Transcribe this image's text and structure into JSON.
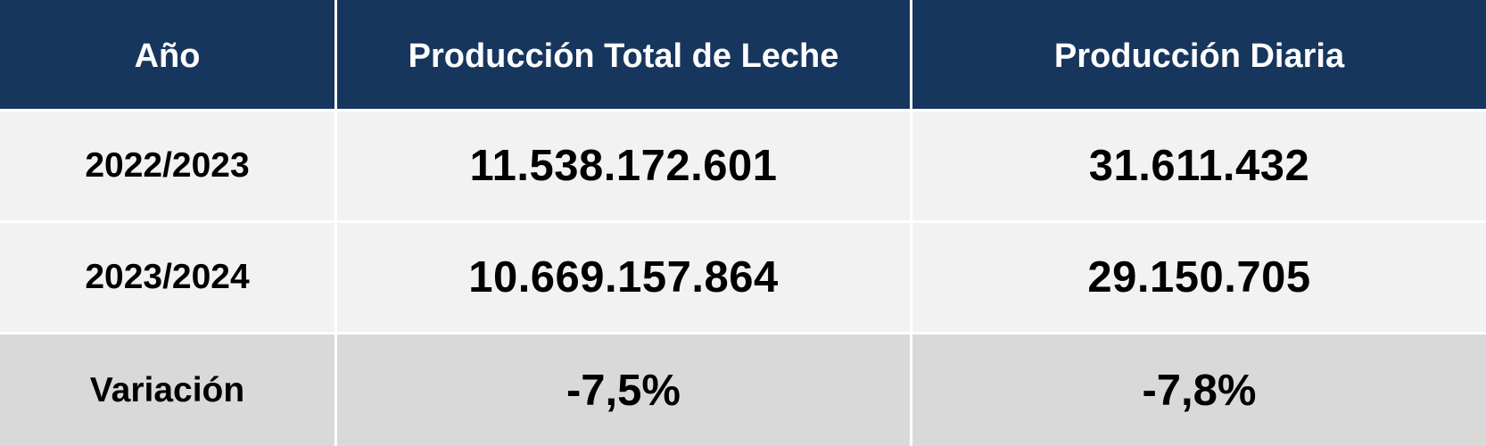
{
  "table": {
    "headers": [
      "Año",
      "Producción Total de Leche",
      "Producción Diaria"
    ],
    "rows": [
      [
        "2022/2023",
        "11.538.172.601",
        "31.611.432"
      ],
      [
        "2023/2024",
        "10.669.157.864",
        "29.150.705"
      ]
    ],
    "footer": [
      "Variación",
      "-7,5%",
      "-7,8%"
    ]
  },
  "colors": {
    "header_bg": "#17365d",
    "header_text": "#ffffff",
    "row_bg": "#f2f2f2",
    "footer_bg": "#d9d9d9",
    "text": "#000000"
  }
}
